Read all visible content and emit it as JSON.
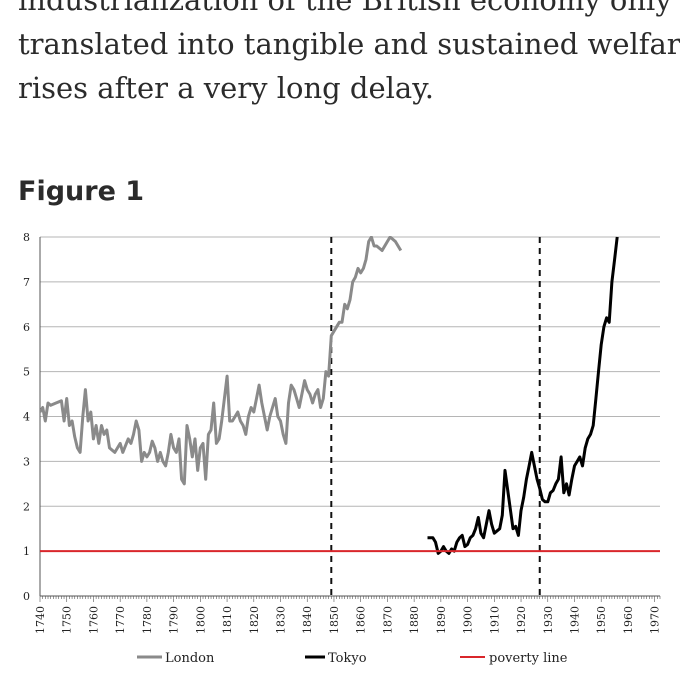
{
  "article": {
    "lines": [
      "industrialization of the British economy only",
      "translated into tangible and sustained welfare",
      "rises after a very long delay."
    ]
  },
  "figure": {
    "title": "Figure 1"
  },
  "chart_data": {
    "type": "line",
    "title": "",
    "xlabel": "",
    "ylabel": "",
    "xlim": [
      1740,
      1972
    ],
    "ylim": [
      0,
      8
    ],
    "y_ticks": [
      0,
      1,
      2,
      3,
      4,
      5,
      6,
      7,
      8
    ],
    "x_ticks": [
      1740,
      1750,
      1760,
      1770,
      1780,
      1790,
      1800,
      1810,
      1820,
      1830,
      1840,
      1850,
      1860,
      1870,
      1880,
      1890,
      1900,
      1910,
      1920,
      1930,
      1940,
      1950,
      1960,
      1970
    ],
    "grid": true,
    "legend_position": "bottom",
    "vertical_lines": [
      1849,
      1927
    ],
    "series": [
      {
        "name": "London",
        "color": "#8a8a8a",
        "points": [
          [
            1740,
            4.1
          ],
          [
            1741,
            4.2
          ],
          [
            1742,
            3.9
          ],
          [
            1743,
            4.3
          ],
          [
            1744,
            4.25
          ],
          [
            1746,
            4.3
          ],
          [
            1748,
            4.35
          ],
          [
            1749,
            3.9
          ],
          [
            1750,
            4.4
          ],
          [
            1751,
            3.8
          ],
          [
            1752,
            3.9
          ],
          [
            1753,
            3.55
          ],
          [
            1754,
            3.3
          ],
          [
            1755,
            3.2
          ],
          [
            1756,
            4.0
          ],
          [
            1757,
            4.6
          ],
          [
            1758,
            3.9
          ],
          [
            1759,
            4.1
          ],
          [
            1760,
            3.5
          ],
          [
            1761,
            3.8
          ],
          [
            1762,
            3.4
          ],
          [
            1763,
            3.8
          ],
          [
            1764,
            3.6
          ],
          [
            1765,
            3.7
          ],
          [
            1766,
            3.3
          ],
          [
            1767,
            3.25
          ],
          [
            1768,
            3.2
          ],
          [
            1769,
            3.3
          ],
          [
            1770,
            3.4
          ],
          [
            1771,
            3.2
          ],
          [
            1773,
            3.5
          ],
          [
            1774,
            3.4
          ],
          [
            1775,
            3.6
          ],
          [
            1776,
            3.9
          ],
          [
            1777,
            3.7
          ],
          [
            1778,
            3.0
          ],
          [
            1779,
            3.2
          ],
          [
            1780,
            3.1
          ],
          [
            1781,
            3.2
          ],
          [
            1782,
            3.45
          ],
          [
            1783,
            3.3
          ],
          [
            1784,
            3.0
          ],
          [
            1785,
            3.2
          ],
          [
            1786,
            3.0
          ],
          [
            1787,
            2.9
          ],
          [
            1788,
            3.2
          ],
          [
            1789,
            3.6
          ],
          [
            1790,
            3.3
          ],
          [
            1791,
            3.2
          ],
          [
            1792,
            3.5
          ],
          [
            1793,
            2.6
          ],
          [
            1794,
            2.5
          ],
          [
            1795,
            3.8
          ],
          [
            1796,
            3.5
          ],
          [
            1797,
            3.1
          ],
          [
            1798,
            3.5
          ],
          [
            1799,
            2.8
          ],
          [
            1800,
            3.3
          ],
          [
            1801,
            3.4
          ],
          [
            1802,
            2.6
          ],
          [
            1803,
            3.6
          ],
          [
            1804,
            3.7
          ],
          [
            1805,
            4.3
          ],
          [
            1806,
            3.4
          ],
          [
            1807,
            3.5
          ],
          [
            1808,
            3.9
          ],
          [
            1809,
            4.4
          ],
          [
            1810,
            4.9
          ],
          [
            1811,
            3.9
          ],
          [
            1812,
            3.9
          ],
          [
            1813,
            4.0
          ],
          [
            1814,
            4.1
          ],
          [
            1815,
            3.9
          ],
          [
            1816,
            3.8
          ],
          [
            1817,
            3.6
          ],
          [
            1818,
            4.0
          ],
          [
            1819,
            4.2
          ],
          [
            1820,
            4.1
          ],
          [
            1821,
            4.4
          ],
          [
            1822,
            4.7
          ],
          [
            1823,
            4.3
          ],
          [
            1824,
            4.0
          ],
          [
            1825,
            3.7
          ],
          [
            1826,
            4.0
          ],
          [
            1827,
            4.2
          ],
          [
            1828,
            4.4
          ],
          [
            1829,
            4.0
          ],
          [
            1830,
            3.9
          ],
          [
            1831,
            3.6
          ],
          [
            1832,
            3.4
          ],
          [
            1833,
            4.3
          ],
          [
            1834,
            4.7
          ],
          [
            1835,
            4.6
          ],
          [
            1836,
            4.4
          ],
          [
            1837,
            4.2
          ],
          [
            1838,
            4.5
          ],
          [
            1839,
            4.8
          ],
          [
            1840,
            4.6
          ],
          [
            1841,
            4.5
          ],
          [
            1842,
            4.3
          ],
          [
            1843,
            4.5
          ],
          [
            1844,
            4.6
          ],
          [
            1845,
            4.2
          ],
          [
            1846,
            4.4
          ],
          [
            1847,
            5.0
          ],
          [
            1848,
            4.9
          ],
          [
            1849,
            5.8
          ],
          [
            1851,
            6.0
          ],
          [
            1852,
            6.1
          ],
          [
            1853,
            6.1
          ],
          [
            1854,
            6.5
          ],
          [
            1855,
            6.4
          ],
          [
            1856,
            6.6
          ],
          [
            1857,
            7.0
          ],
          [
            1858,
            7.1
          ],
          [
            1859,
            7.3
          ],
          [
            1860,
            7.2
          ],
          [
            1861,
            7.3
          ],
          [
            1862,
            7.5
          ],
          [
            1863,
            7.9
          ],
          [
            1864,
            8.0
          ],
          [
            1865,
            7.8
          ],
          [
            1866,
            7.8
          ],
          [
            1868,
            7.7
          ],
          [
            1870,
            7.9
          ],
          [
            1871,
            8.0
          ],
          [
            1873,
            7.9
          ],
          [
            1874,
            7.8
          ],
          [
            1875,
            7.7
          ]
        ]
      },
      {
        "name": "Tokyo",
        "color": "#000000",
        "points": [
          [
            1885,
            1.3
          ],
          [
            1887,
            1.3
          ],
          [
            1888,
            1.2
          ],
          [
            1889,
            0.95
          ],
          [
            1890,
            1.0
          ],
          [
            1891,
            1.1
          ],
          [
            1892,
            1.0
          ],
          [
            1893,
            0.95
          ],
          [
            1894,
            1.05
          ],
          [
            1895,
            1.0
          ],
          [
            1896,
            1.2
          ],
          [
            1897,
            1.3
          ],
          [
            1898,
            1.35
          ],
          [
            1899,
            1.1
          ],
          [
            1900,
            1.15
          ],
          [
            1901,
            1.3
          ],
          [
            1902,
            1.35
          ],
          [
            1903,
            1.5
          ],
          [
            1904,
            1.75
          ],
          [
            1905,
            1.4
          ],
          [
            1906,
            1.3
          ],
          [
            1907,
            1.6
          ],
          [
            1908,
            1.9
          ],
          [
            1909,
            1.6
          ],
          [
            1910,
            1.4
          ],
          [
            1912,
            1.5
          ],
          [
            1913,
            1.8
          ],
          [
            1914,
            2.8
          ],
          [
            1917,
            1.5
          ],
          [
            1918,
            1.55
          ],
          [
            1919,
            1.35
          ],
          [
            1920,
            1.9
          ],
          [
            1921,
            2.2
          ],
          [
            1922,
            2.6
          ],
          [
            1923,
            2.9
          ],
          [
            1924,
            3.2
          ],
          [
            1925,
            2.9
          ],
          [
            1926,
            2.6
          ],
          [
            1927,
            2.4
          ],
          [
            1928,
            2.15
          ],
          [
            1929,
            2.1
          ],
          [
            1930,
            2.1
          ],
          [
            1931,
            2.3
          ],
          [
            1932,
            2.35
          ],
          [
            1933,
            2.5
          ],
          [
            1934,
            2.6
          ],
          [
            1935,
            3.1
          ],
          [
            1936,
            2.3
          ],
          [
            1937,
            2.5
          ],
          [
            1938,
            2.25
          ],
          [
            1939,
            2.6
          ],
          [
            1940,
            2.9
          ],
          [
            1941,
            3.0
          ],
          [
            1942,
            3.1
          ],
          [
            1943,
            2.9
          ],
          [
            1944,
            3.3
          ],
          [
            1945,
            3.5
          ],
          [
            1946,
            3.6
          ],
          [
            1947,
            3.8
          ],
          [
            1948,
            4.4
          ],
          [
            1949,
            5.0
          ],
          [
            1950,
            5.6
          ],
          [
            1951,
            6.0
          ],
          [
            1952,
            6.2
          ],
          [
            1953,
            6.1
          ],
          [
            1954,
            7.0
          ],
          [
            1955,
            7.5
          ],
          [
            1956,
            8.0
          ]
        ]
      },
      {
        "name": "poverty line",
        "color": "#d9262b",
        "points": [
          [
            1740,
            1
          ],
          [
            1972,
            1
          ]
        ]
      }
    ]
  }
}
